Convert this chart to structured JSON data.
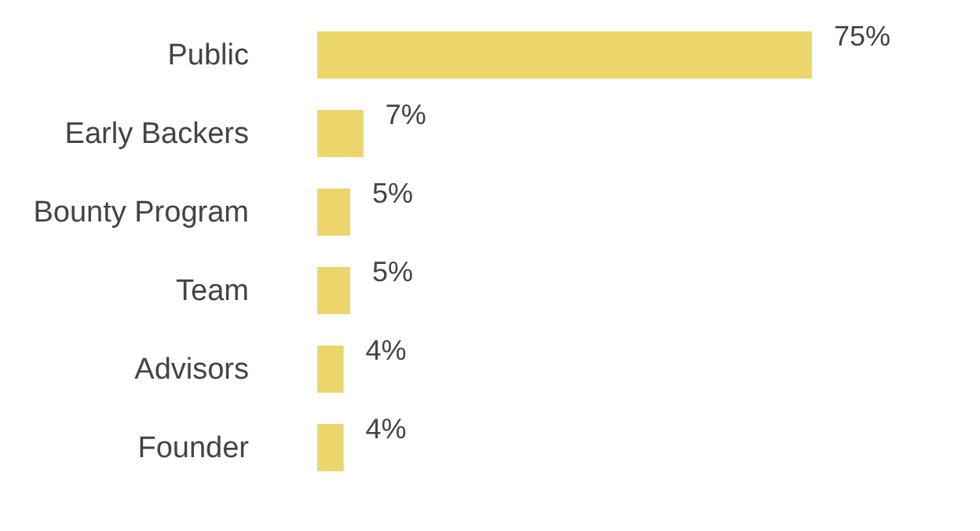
{
  "chart_data": {
    "type": "bar",
    "orientation": "horizontal",
    "categories": [
      "Public",
      "Early Backers",
      "Bounty Program",
      "Team",
      "Advisors",
      "Founder"
    ],
    "values": [
      75,
      7,
      5,
      5,
      4,
      4
    ],
    "color": "#ecd56a",
    "data_labels": true,
    "value_labels": [
      "75%",
      "7%",
      "5%",
      "5%",
      "4%",
      "4%"
    ]
  }
}
